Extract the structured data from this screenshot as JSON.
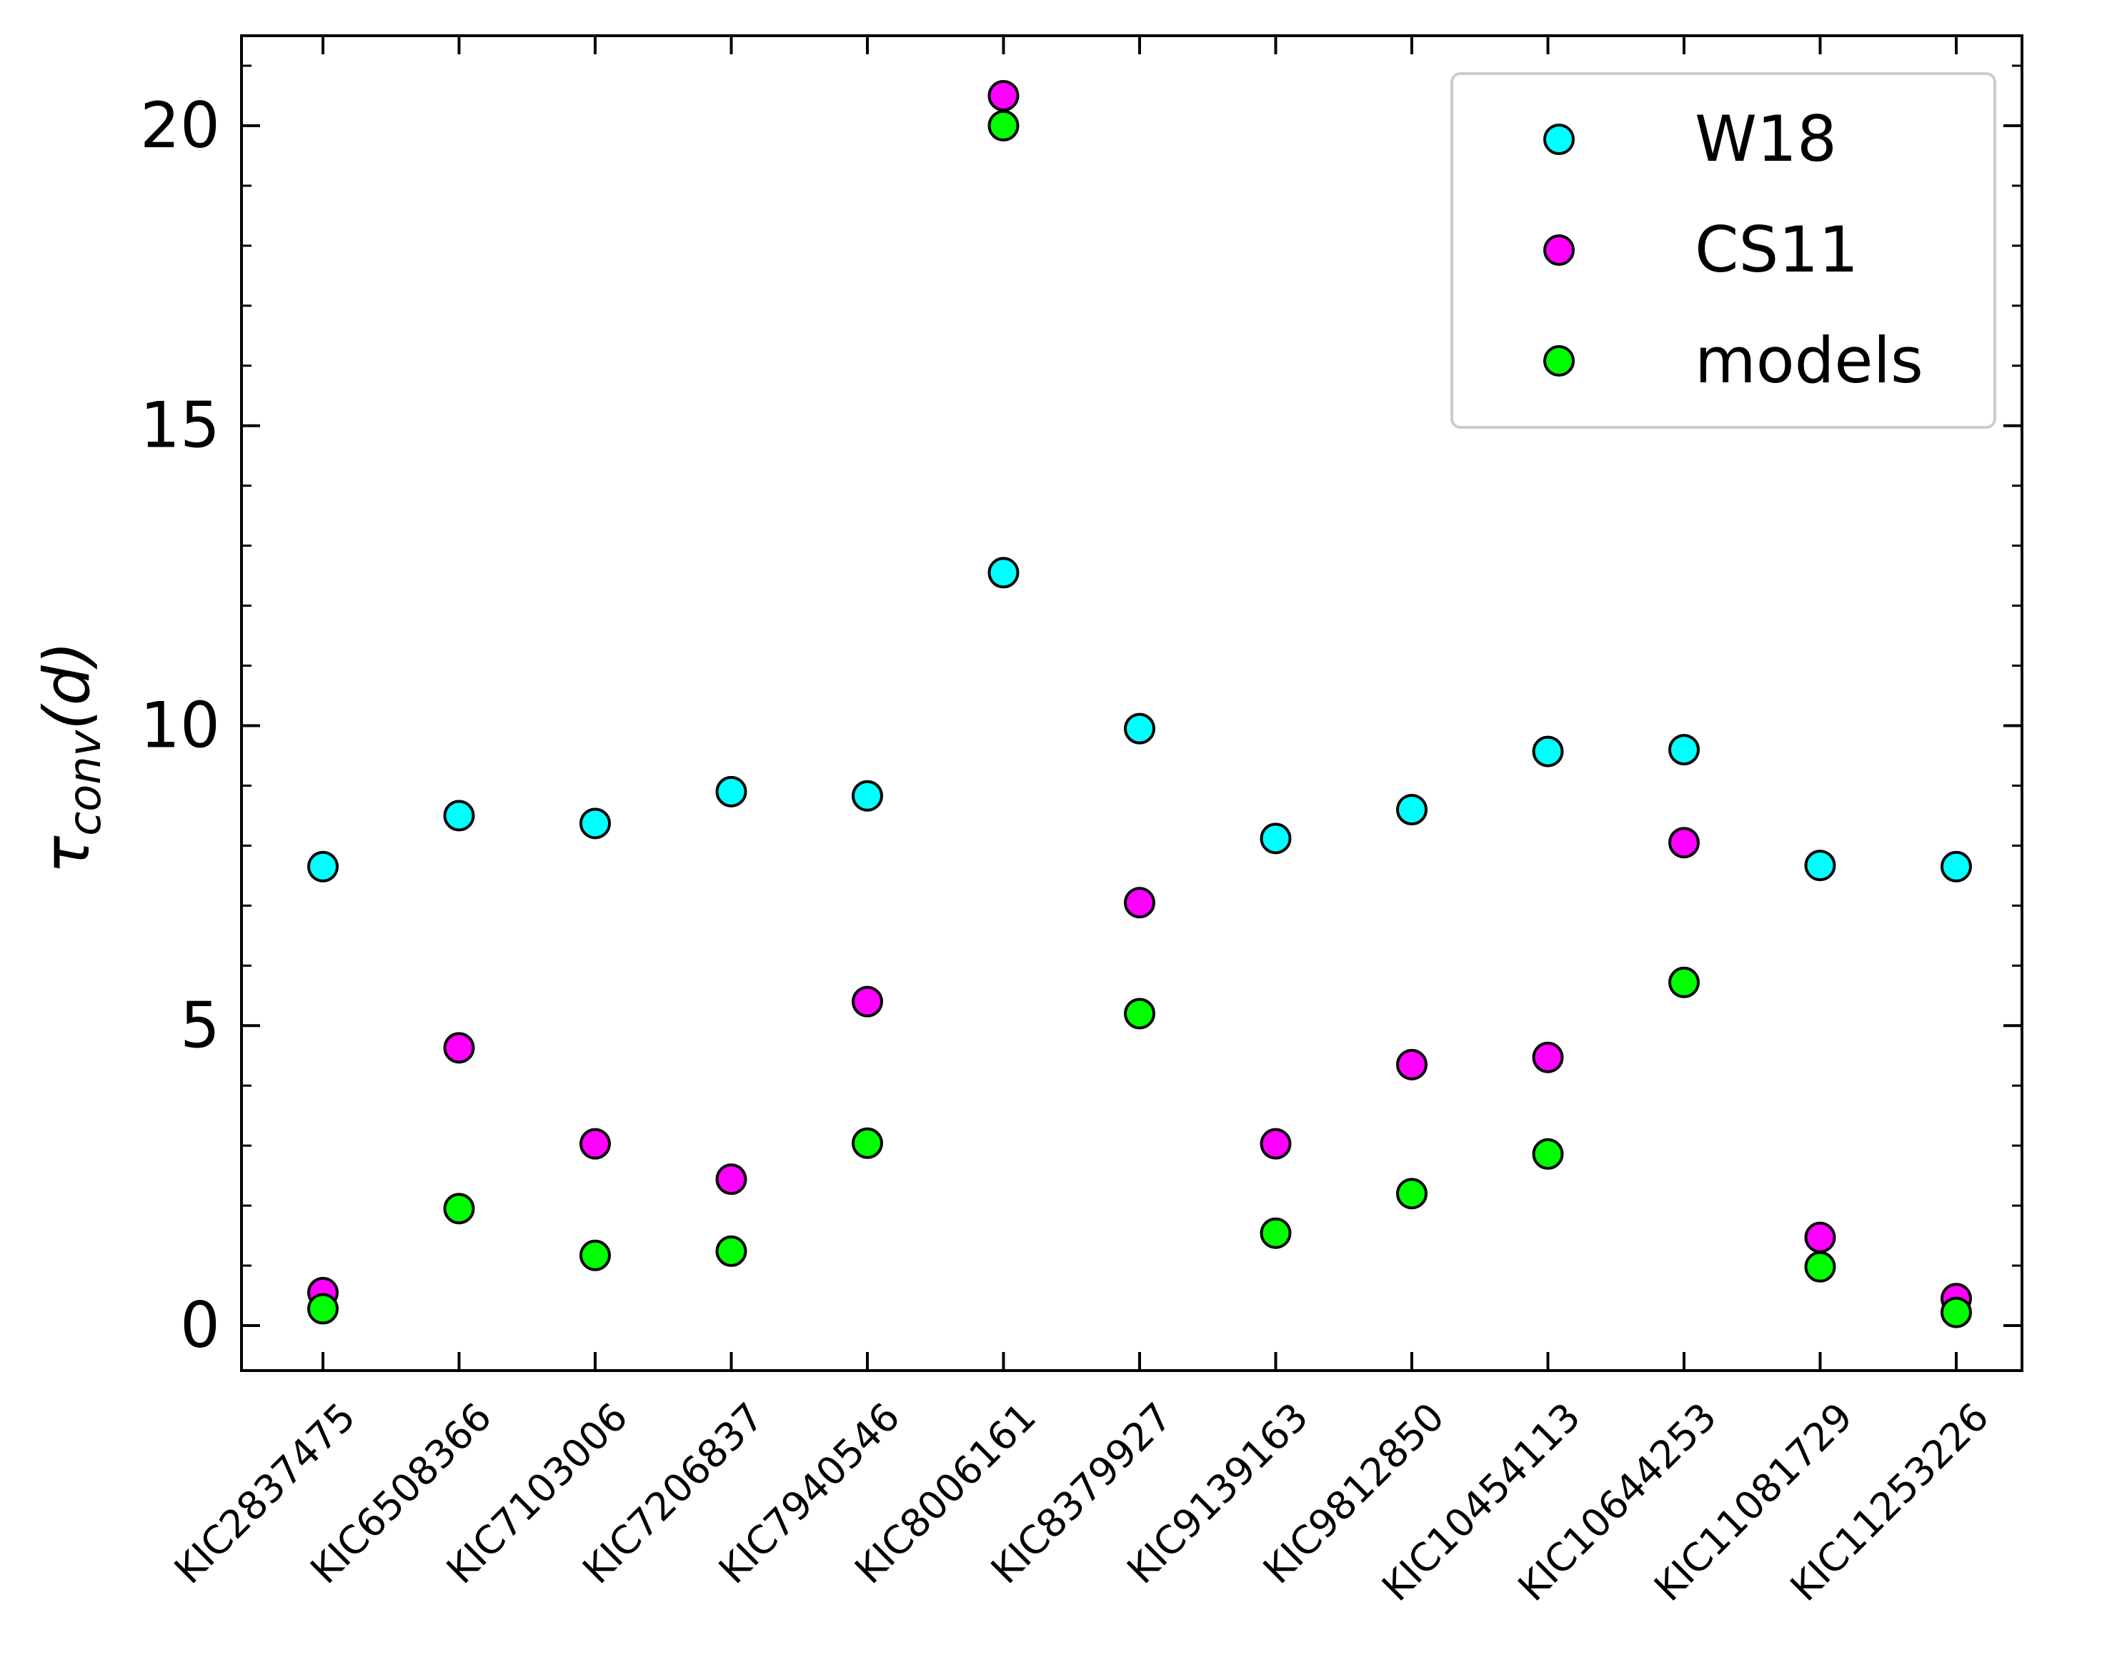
{
  "chart_data": {
    "type": "scatter",
    "title": "",
    "xlabel": "",
    "ylabel_main": "τ",
    "ylabel_sub": "conv",
    "ylabel_tail": "(d)",
    "ylim": [
      -0.75,
      21.5
    ],
    "yticks": [
      0,
      5,
      10,
      15,
      20
    ],
    "ytick_labels": [
      "0",
      "5",
      "10",
      "15",
      "20"
    ],
    "categories": [
      "KIC2837475",
      "KIC6508366",
      "KIC7103006",
      "KIC7206837",
      "KIC7940546",
      "KIC8006161",
      "KIC8379927",
      "KIC9139163",
      "KIC9812850",
      "KIC10454113",
      "KIC10644253",
      "KIC11081729",
      "KIC11253226"
    ],
    "legend_position": "top-right",
    "grid": false,
    "series": [
      {
        "name": "W18",
        "color": "#00ffff",
        "values": [
          7.65,
          8.5,
          8.37,
          8.9,
          8.83,
          12.55,
          9.95,
          8.12,
          8.6,
          9.57,
          9.6,
          7.67,
          7.65
        ]
      },
      {
        "name": "CS11",
        "color": "#ff00ff",
        "values": [
          0.55,
          4.63,
          3.03,
          2.44,
          5.4,
          20.5,
          7.05,
          3.03,
          4.35,
          4.47,
          8.05,
          1.47,
          0.45
        ]
      },
      {
        "name": "models",
        "color": "#00ff00",
        "values": [
          0.28,
          1.95,
          1.17,
          1.24,
          3.04,
          20.0,
          5.2,
          1.54,
          2.2,
          2.86,
          5.72,
          0.98,
          0.22
        ]
      }
    ]
  }
}
